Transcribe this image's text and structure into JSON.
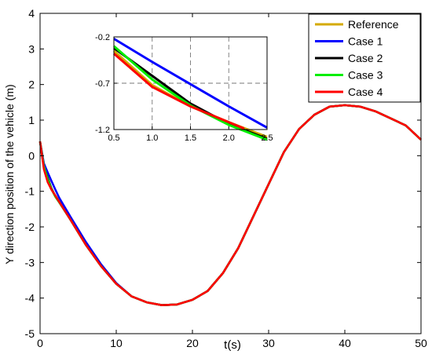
{
  "chart_data": {
    "type": "line",
    "title": "",
    "xlabel": "t(s)",
    "ylabel": "Y direction position of the vehicle (m)",
    "xlim": [
      0,
      50
    ],
    "ylim": [
      -5,
      4
    ],
    "xticks": [
      0,
      10,
      20,
      30,
      40,
      50
    ],
    "yticks": [
      -5,
      -4,
      -3,
      -2,
      -1,
      0,
      1,
      2,
      3,
      4
    ],
    "grid": false,
    "legend": "top-right",
    "series": [
      {
        "name": "Reference",
        "color": "#d4aa00",
        "x": [
          0,
          0.5,
          1,
          1.5,
          2,
          2.5,
          4,
          6,
          8,
          10,
          12,
          14,
          16,
          18,
          20,
          22,
          24,
          26,
          28,
          30,
          32,
          34,
          36,
          38,
          40,
          42,
          44,
          46,
          48,
          50
        ],
        "y": [
          0.4,
          -0.35,
          -0.72,
          -0.95,
          -1.12,
          -1.28,
          -1.8,
          -2.5,
          -3.1,
          -3.6,
          -3.95,
          -4.12,
          -4.2,
          -4.18,
          -4.05,
          -3.8,
          -3.3,
          -2.6,
          -1.7,
          -0.8,
          0.1,
          0.75,
          1.15,
          1.38,
          1.42,
          1.38,
          1.25,
          1.05,
          0.85,
          0.45
        ]
      },
      {
        "name": "Case 1",
        "color": "#0000ff",
        "x": [
          0,
          0.5,
          1,
          1.5,
          2,
          2.5,
          4,
          6,
          8,
          10,
          12,
          14,
          16,
          18,
          20,
          22,
          24,
          26,
          28,
          30,
          32,
          34,
          36,
          38,
          40,
          42,
          44,
          46,
          48,
          50
        ],
        "y": [
          0.4,
          -0.22,
          -0.47,
          -0.71,
          -0.95,
          -1.18,
          -1.72,
          -2.42,
          -3.05,
          -3.58,
          -3.95,
          -4.12,
          -4.2,
          -4.18,
          -4.05,
          -3.8,
          -3.3,
          -2.6,
          -1.7,
          -0.8,
          0.1,
          0.75,
          1.15,
          1.38,
          1.42,
          1.38,
          1.25,
          1.05,
          0.85,
          0.45
        ]
      },
      {
        "name": "Case 2",
        "color": "#000000",
        "x": [
          0,
          0.5,
          1,
          1.5,
          2,
          2.5,
          4,
          6,
          8,
          10,
          12,
          14,
          16,
          18,
          20,
          22,
          24,
          26,
          28,
          30,
          32,
          34,
          36,
          38,
          40,
          42,
          44,
          46,
          48,
          50
        ],
        "y": [
          0.4,
          -0.32,
          -0.62,
          -0.92,
          -1.14,
          -1.3,
          -1.8,
          -2.5,
          -3.1,
          -3.6,
          -3.95,
          -4.12,
          -4.2,
          -4.18,
          -4.05,
          -3.8,
          -3.3,
          -2.6,
          -1.7,
          -0.8,
          0.1,
          0.75,
          1.15,
          1.38,
          1.42,
          1.38,
          1.25,
          1.05,
          0.85,
          0.45
        ]
      },
      {
        "name": "Case 3",
        "color": "#00ee00",
        "x": [
          0,
          0.5,
          1,
          1.5,
          2,
          2.5,
          4,
          6,
          8,
          10,
          12,
          14,
          16,
          18,
          20,
          22,
          24,
          26,
          28,
          30,
          32,
          34,
          36,
          38,
          40,
          42,
          44,
          46,
          48,
          50
        ],
        "y": [
          0.4,
          -0.3,
          -0.66,
          -0.94,
          -1.15,
          -1.31,
          -1.8,
          -2.5,
          -3.1,
          -3.6,
          -3.95,
          -4.12,
          -4.2,
          -4.18,
          -4.05,
          -3.8,
          -3.3,
          -2.6,
          -1.7,
          -0.8,
          0.1,
          0.75,
          1.15,
          1.38,
          1.42,
          1.38,
          1.25,
          1.05,
          0.85,
          0.45
        ]
      },
      {
        "name": "Case 4",
        "color": "#ff0000",
        "x": [
          0,
          0.5,
          1,
          1.5,
          2,
          2.2,
          4,
          6,
          8,
          10,
          12,
          14,
          16,
          18,
          20,
          22,
          24,
          26,
          28,
          30,
          32,
          34,
          36,
          38,
          40,
          42,
          44,
          46,
          48,
          50
        ],
        "y": [
          0.4,
          -0.38,
          -0.74,
          -0.95,
          -1.12,
          -1.19,
          -1.8,
          -2.5,
          -3.1,
          -3.6,
          -3.95,
          -4.12,
          -4.2,
          -4.18,
          -4.05,
          -3.8,
          -3.3,
          -2.6,
          -1.7,
          -0.8,
          0.1,
          0.75,
          1.15,
          1.38,
          1.42,
          1.38,
          1.25,
          1.05,
          0.85,
          0.45
        ]
      }
    ],
    "inset": {
      "xlim": [
        0.5,
        2.5
      ],
      "ylim": [
        -1.2,
        -0.2
      ],
      "xticks": [
        0.5,
        1.0,
        1.5,
        2.0,
        2.5
      ],
      "xtick_labels": [
        "0.5",
        "1.0",
        "1.5",
        "2.0",
        "2.5"
      ],
      "yticks": [
        -1.2,
        -0.7,
        -0.2
      ],
      "ytick_labels": [
        "-1.2",
        "-0.7",
        "-0.2"
      ],
      "grid": "dashed"
    }
  }
}
